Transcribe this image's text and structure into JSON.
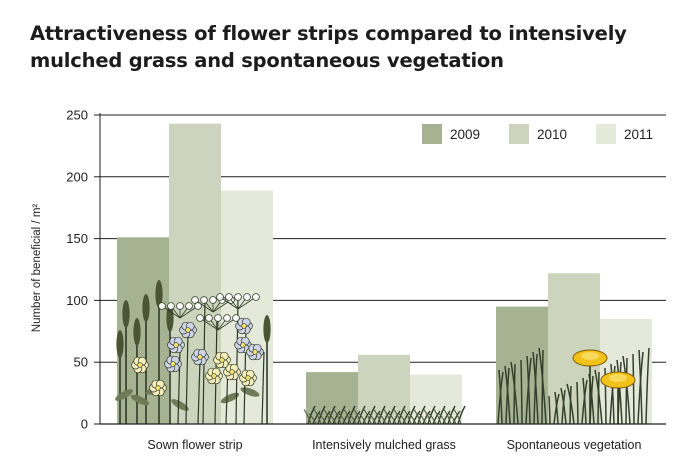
{
  "chart_data": {
    "type": "bar",
    "title": "Attractiveness of flower strips compared to intensively mulched grass and spontaneous vegetation",
    "xlabel": "",
    "ylabel": "Number of beneficial / m²",
    "ylim": [
      0,
      250
    ],
    "yticks": [
      0,
      50,
      100,
      150,
      200,
      250
    ],
    "grid": true,
    "legend": "top-right",
    "categories": [
      "Sown flower strip",
      "Intensively mulched grass",
      "Spontaneous vegetation"
    ],
    "series": [
      {
        "name": "2009",
        "color": "#a6b393",
        "values": [
          151,
          42,
          95
        ]
      },
      {
        "name": "2010",
        "color": "#ccd4bd",
        "values": [
          243,
          56,
          122
        ]
      },
      {
        "name": "2011",
        "color": "#e4e9da",
        "values": [
          189,
          40,
          85
        ]
      }
    ],
    "illustrations": [
      "wildflowers-icon",
      "cut-grass-icon",
      "dandelion-grass-icon"
    ]
  }
}
